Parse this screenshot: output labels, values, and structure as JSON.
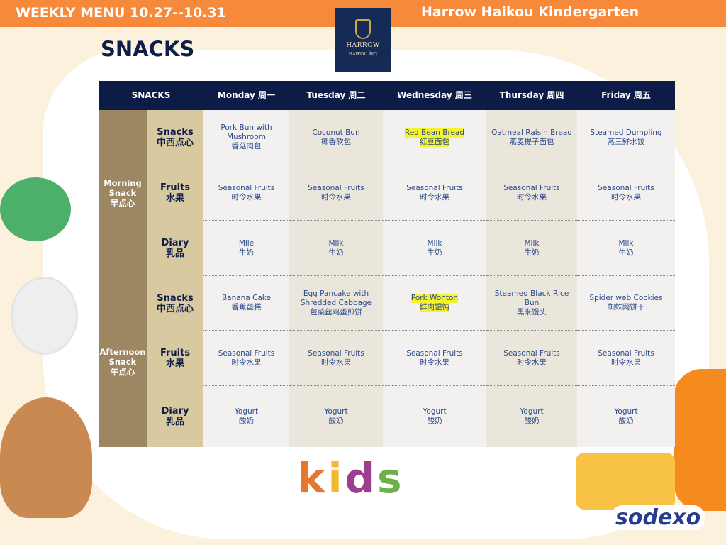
{
  "header": {
    "left": "WEEKLY MENU 10.27--10.31",
    "right": "Harrow Haikou Kindergarten"
  },
  "logo": {
    "name": "HARROW",
    "sub": "HAIKOU 海口"
  },
  "page_title": "SNACKS",
  "table": {
    "corner": "SNACKS",
    "days": [
      "Monday 周一",
      "Tuesday 周二",
      "Wednesday 周三",
      "Thursday 周四",
      "Friday 周五"
    ],
    "groups": [
      {
        "label": [
          "Morning",
          "Snack",
          "早点心"
        ],
        "rows": [
          {
            "cat": [
              "Snacks",
              "中西点心"
            ],
            "items": [
              [
                "Pork Bun with",
                "Mushroom",
                "香菇肉包"
              ],
              [
                "Coconut Bun",
                "椰香软包"
              ],
              [
                "Red Bean Bread",
                "红豆面包"
              ],
              [
                "Oatmeal Raisin Bread",
                "燕麦提子面包"
              ],
              [
                "Steamed Dumpling",
                "蒸三鲜水饺"
              ]
            ]
          },
          {
            "cat": [
              "Fruits",
              "水果"
            ],
            "items": [
              [
                "Seasonal Fruits",
                "时令水果"
              ],
              [
                "Seasonal Fruits",
                "时令水果"
              ],
              [
                "Seasonal Fruits",
                "时令水果"
              ],
              [
                "Seasonal Fruits",
                "时令水果"
              ],
              [
                "Seasonal Fruits",
                "时令水果"
              ]
            ]
          },
          {
            "cat": [
              "Diary",
              "乳品"
            ],
            "items": [
              [
                "Mile",
                "牛奶"
              ],
              [
                "Milk",
                "牛奶"
              ],
              [
                "Milk",
                "牛奶"
              ],
              [
                "Milk",
                "牛奶"
              ],
              [
                "Milk",
                "牛奶"
              ]
            ]
          }
        ]
      },
      {
        "label": [
          "Afternoon",
          "Snack",
          "午点心"
        ],
        "rows": [
          {
            "cat": [
              "Snacks",
              "中西点心"
            ],
            "items": [
              [
                "Banana Cake",
                "香蕉蛋糕"
              ],
              [
                "Egg Pancake with",
                "Shredded Cabbage",
                "包菜丝鸡蛋煎饼"
              ],
              [
                "Pork Wonton",
                "鲜肉馄饨"
              ],
              [
                "Steamed Black Rice Bun",
                "黑米馒头"
              ],
              [
                "Spider web Cookies",
                "蜘蛛网饼干"
              ]
            ]
          },
          {
            "cat": [
              "Fruits",
              "水果"
            ],
            "items": [
              [
                "Seasonal Fruits",
                "时令水果"
              ],
              [
                "Seasonal Fruits",
                "时令水果"
              ],
              [
                "Seasonal Fruits",
                "时令水果"
              ],
              [
                "Seasonal Fruits",
                "时令水果"
              ],
              [
                "Seasonal Fruits",
                "时令水果"
              ]
            ]
          },
          {
            "cat": [
              "Diary",
              "乳品"
            ],
            "items": [
              [
                "Yogurt",
                "酸奶"
              ],
              [
                "Yogurt",
                "酸奶"
              ],
              [
                "Yogurt",
                "酸奶"
              ],
              [
                "Yogurt",
                "酸奶"
              ],
              [
                "Yogurt",
                "酸奶"
              ]
            ]
          }
        ]
      }
    ],
    "highlighted": [
      "Red Bean Bread",
      "Pork Wonton"
    ]
  },
  "kids_text": "kids",
  "brand": "sodexo",
  "colors": {
    "topbar": "#f7893a",
    "header": "#0d1c46",
    "highlight": "#f6f32a",
    "text": "#2b4a8c"
  }
}
